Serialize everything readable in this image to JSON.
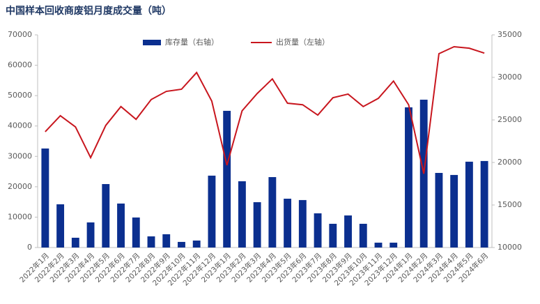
{
  "chart_data": {
    "type": "bar-line",
    "title": "中国样本回收商废铝月度成交量（吨）",
    "categories": [
      "2022年1月",
      "2022年2月",
      "2022年3月",
      "2022年4月",
      "2022年5月",
      "2022年6月",
      "2022年7月",
      "2022年8月",
      "2022年9月",
      "2022年10月",
      "2022年11月",
      "2022年12月",
      "2023年1月",
      "2023年2月",
      "2023年3月",
      "2023年4月",
      "2023年5月",
      "2023年6月",
      "2023年7月",
      "2023年8月",
      "2023年9月",
      "2023年10月",
      "2023年11月",
      "2023年12月",
      "2024年1月",
      "2024年2月",
      "2024年3月",
      "2024年4月",
      "2024年5月",
      "2024年6月"
    ],
    "series": [
      {
        "name": "库存量（右轴）",
        "type": "bar",
        "axis": "y2",
        "color": "#0b2f8f",
        "values": [
          21640,
          15080,
          11150,
          12950,
          17460,
          15170,
          13530,
          11310,
          11560,
          10660,
          10820,
          18450,
          26070,
          17790,
          15330,
          18280,
          15740,
          15580,
          14020,
          12790,
          13770,
          12790,
          10570,
          10570,
          26480,
          27380,
          18770,
          18530,
          20090,
          20170
        ]
      },
      {
        "name": "出货量（左轴）",
        "type": "line",
        "color": "#c8161e",
        "values": [
          38100,
          43400,
          39700,
          29600,
          40200,
          46400,
          42200,
          48700,
          51400,
          52100,
          57600,
          48200,
          27100,
          45000,
          50700,
          55500,
          47500,
          47000,
          43600,
          49300,
          50500,
          46400,
          49100,
          54800,
          47000,
          24300,
          63800,
          66100,
          65600,
          64000
        ]
      }
    ],
    "ylim": [
      0,
      70000
    ],
    "yticks": [
      0,
      10000,
      20000,
      30000,
      40000,
      50000,
      60000,
      70000
    ],
    "y2lim": [
      10000,
      35000
    ],
    "y2ticks": [
      10000,
      15000,
      20000,
      25000,
      30000,
      35000
    ]
  }
}
